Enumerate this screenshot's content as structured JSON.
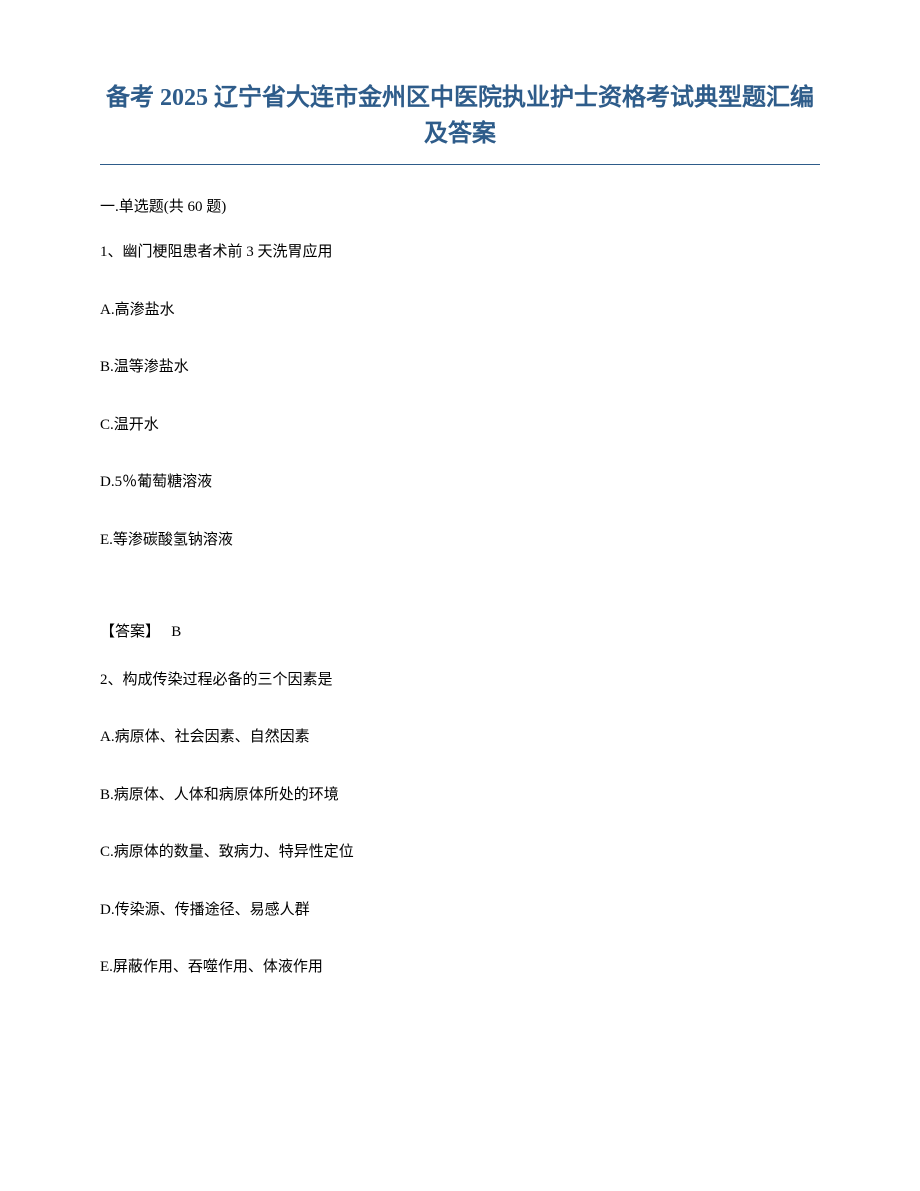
{
  "title": "备考 2025 辽宁省大连市金州区中医院执业护士资格考试典型题汇编及答案",
  "section_header": "一.单选题(共 60 题)",
  "questions": [
    {
      "number": "1、",
      "text": "幽门梗阻患者术前 3 天洗胃应用",
      "options": [
        "A.高渗盐水",
        "B.温等渗盐水",
        "C.温开水",
        "D.5％葡萄糖溶液",
        "E.等渗碳酸氢钠溶液"
      ],
      "answer_label": "【答案】",
      "answer_value": "B"
    },
    {
      "number": "2、",
      "text": "构成传染过程必备的三个因素是",
      "options": [
        "A.病原体、社会因素、自然因素",
        "B.病原体、人体和病原体所处的环境",
        "C.病原体的数量、致病力、特异性定位",
        "D.传染源、传播途径、易感人群",
        "E.屏蔽作用、吞噬作用、体液作用"
      ],
      "answer_label": "",
      "answer_value": ""
    }
  ],
  "colors": {
    "title_color": "#2e5c8a",
    "text_color": "#000000",
    "background": "#ffffff",
    "border_color": "#2e5c8a"
  },
  "typography": {
    "title_fontsize": 24,
    "body_fontsize": 15,
    "font_family": "SimSun"
  }
}
